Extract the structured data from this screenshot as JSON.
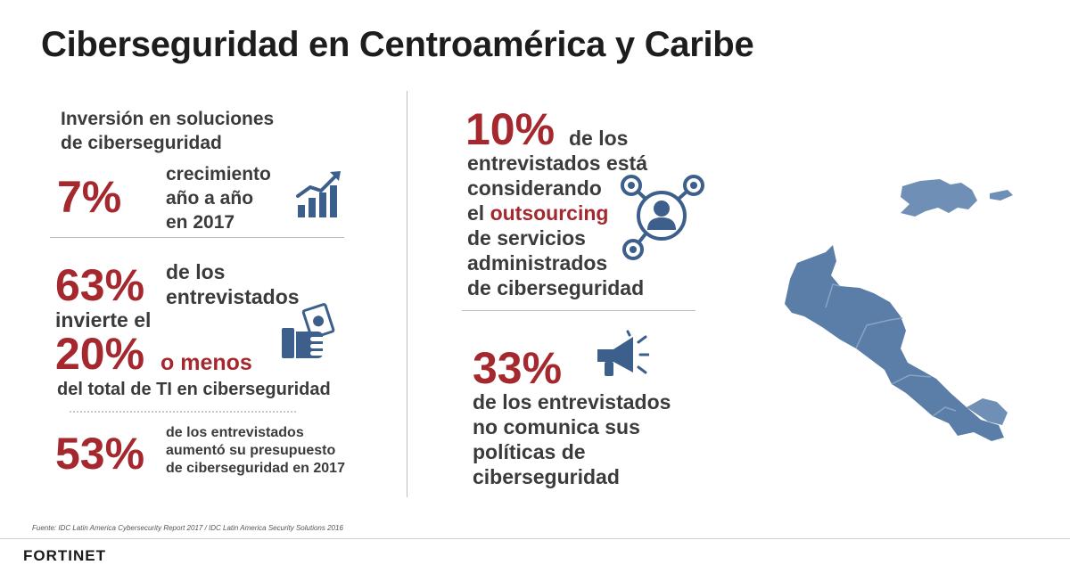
{
  "title": "Ciberseguridad en Centroamérica y Caribe",
  "left": {
    "invest_heading_line1": "Inversión en soluciones",
    "invest_heading_line2": "de ciberseguridad",
    "stat1": {
      "value": "7%",
      "line1": "crecimiento",
      "line2": "año a año",
      "line3": "en 2017"
    },
    "stat2": {
      "value1": "63%",
      "line1": "de los",
      "line2": "entrevistados",
      "line3": "invierte el",
      "value2": "20%",
      "line4": "o menos",
      "line5": "del total de TI en ciberseguridad"
    },
    "stat3": {
      "value": "53%",
      "line1": "de los entrevistados",
      "line2": "aumentó su presupuesto",
      "line3": "de ciberseguridad en 2017"
    }
  },
  "right": {
    "stat4": {
      "value": "10%",
      "line1": "de los",
      "line2": "entrevistados está",
      "line3": "considerando",
      "line4_prefix": "el",
      "line4_highlight": "outsourcing",
      "line5": "de servicios",
      "line6": "administrados",
      "line7": "de ciberseguridad"
    },
    "stat5": {
      "value": "33%",
      "line1": "de los entrevistados",
      "line2": "no comunica sus",
      "line3": "políticas de",
      "line4": "ciberseguridad"
    }
  },
  "source": "Fuente: IDC Latin America Cybersecurity Report 2017 / IDC Latin America Security Solutions 2016",
  "brand": "FORTINET",
  "colors": {
    "accent_red": "#a4282d",
    "icon_blue": "#3d5f8c",
    "map_blue": "#5b7ea8"
  }
}
